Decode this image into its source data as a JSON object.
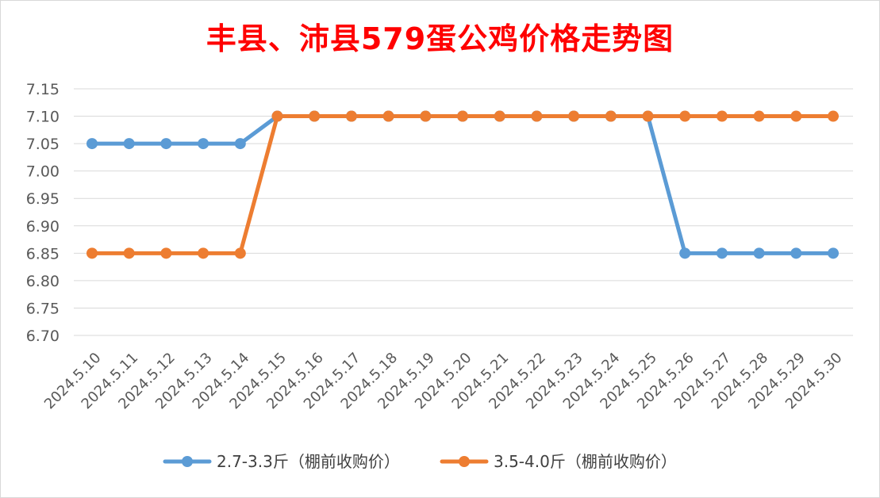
{
  "chart_data": {
    "type": "line",
    "title": "丰县、沛县579蛋公鸡价格走势图",
    "categories": [
      "2024.5.10",
      "2024.5.11",
      "2024.5.12",
      "2024.5.13",
      "2024.5.14",
      "2024.5.15",
      "2024.5.16",
      "2024.5.17",
      "2024.5.18",
      "2024.5.19",
      "2024.5.20",
      "2024.5.21",
      "2024.5.22",
      "2024.5.23",
      "2024.5.24",
      "2024.5.25",
      "2024.5.26",
      "2024.5.27",
      "2024.5.28",
      "2024.5.29",
      "2024.5.30"
    ],
    "ylim": [
      6.7,
      7.15
    ],
    "yticks": [
      "6.70",
      "6.75",
      "6.80",
      "6.85",
      "6.90",
      "6.95",
      "7.00",
      "7.05",
      "7.10",
      "7.15"
    ],
    "grid": true,
    "legend_position": "bottom",
    "series": [
      {
        "name": "2.7-3.3斤（棚前收购价）",
        "color": "#5b9bd5",
        "values": [
          7.05,
          7.05,
          7.05,
          7.05,
          7.05,
          7.1,
          7.1,
          7.1,
          7.1,
          7.1,
          7.1,
          7.1,
          7.1,
          7.1,
          7.1,
          7.1,
          6.85,
          6.85,
          6.85,
          6.85,
          6.85
        ]
      },
      {
        "name": "3.5-4.0斤（棚前收购价）",
        "color": "#ed7d31",
        "values": [
          6.85,
          6.85,
          6.85,
          6.85,
          6.85,
          7.1,
          7.1,
          7.1,
          7.1,
          7.1,
          7.1,
          7.1,
          7.1,
          7.1,
          7.1,
          7.1,
          7.1,
          7.1,
          7.1,
          7.1,
          7.1
        ]
      }
    ]
  }
}
